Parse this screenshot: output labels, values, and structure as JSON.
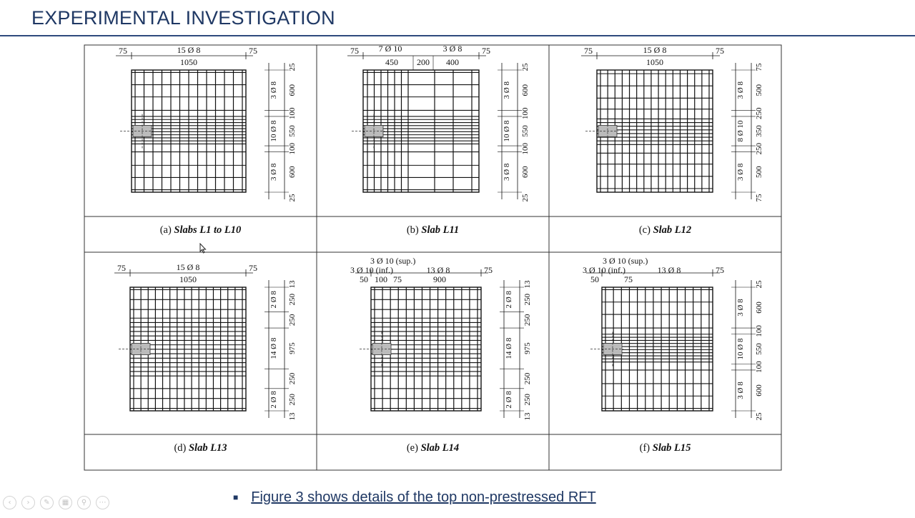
{
  "header": {
    "title": "EXPERIMENTAL INVESTIGATION"
  },
  "figure": {
    "panels": [
      {
        "caption_letter": "(a)",
        "caption_name": "Slabs L1 to L10",
        "top_labels": [
          "75",
          "15 Ø 8",
          "75"
        ],
        "top_dims": [
          "1050"
        ],
        "right_dims": [
          "25",
          "600",
          "100",
          "550",
          "100",
          "600",
          "25"
        ],
        "bar_labels": [
          "3 Ø 8",
          "10 Ø 8",
          "3 Ø 8"
        ]
      },
      {
        "caption_letter": "(b)",
        "caption_name": "Slab L11",
        "top_labels": [
          "75",
          "7 Ø 10",
          "3 Ø 8",
          "75"
        ],
        "top_dims": [
          "450",
          "200",
          "400"
        ],
        "right_dims": [
          "25",
          "600",
          "100",
          "550",
          "100",
          "600",
          "25"
        ],
        "bar_labels": [
          "3 Ø 8",
          "10 Ø 8",
          "3 Ø 8"
        ]
      },
      {
        "caption_letter": "(c)",
        "caption_name": "Slab L12",
        "top_labels": [
          "75",
          "15 Ø 8",
          "75"
        ],
        "top_dims": [
          "1050"
        ],
        "right_dims": [
          "75",
          "500",
          "250",
          "350",
          "250",
          "500",
          "75"
        ],
        "bar_labels": [
          "3 Ø 8",
          "8 Ø 10",
          "3 Ø 8"
        ]
      },
      {
        "caption_letter": "(d)",
        "caption_name": "Slab L13",
        "top_labels": [
          "75",
          "15 Ø 8",
          "75"
        ],
        "top_dims": [
          "1050"
        ],
        "right_dims": [
          "13",
          "250",
          "250",
          "975",
          "250",
          "250",
          "13"
        ],
        "bar_labels": [
          "2 Ø 8",
          "14 Ø 8",
          "2 Ø 8"
        ]
      },
      {
        "caption_letter": "(e)",
        "caption_name": "Slab L14",
        "top_labels": [
          "3 Ø 10 (sup.)",
          "3 Ø 10 (inf.)",
          "13 Ø 8",
          "75"
        ],
        "top_dims": [
          "50",
          "100",
          "75",
          "900"
        ],
        "right_dims": [
          "13",
          "250",
          "250",
          "975",
          "250",
          "250",
          "13"
        ],
        "bar_labels": [
          "2 Ø 8",
          "14 Ø 8",
          "2 Ø 8"
        ]
      },
      {
        "caption_letter": "(f)",
        "caption_name": "Slab L15",
        "top_labels": [
          "3 Ø 10 (sup.)",
          "3 Ø 10 (inf.)",
          "13 Ø 8",
          "75"
        ],
        "top_dims": [
          "50",
          "75"
        ],
        "right_dims": [
          "25",
          "600",
          "100",
          "550",
          "100",
          "600",
          "25"
        ],
        "bar_labels": [
          "3 Ø 8",
          "10 Ø 8",
          "3 Ø 8"
        ]
      }
    ]
  },
  "bullet": {
    "text": "Figure 3 shows details of the top non-prestressed RFT"
  },
  "toolbar": {
    "buttons": [
      {
        "name": "previous-slide-icon",
        "glyph": "‹"
      },
      {
        "name": "next-slide-icon",
        "glyph": "›"
      },
      {
        "name": "pen-icon",
        "glyph": "✎"
      },
      {
        "name": "slides-grid-icon",
        "glyph": "▦"
      },
      {
        "name": "zoom-icon",
        "glyph": "⚲"
      },
      {
        "name": "more-options-icon",
        "glyph": "⋯"
      }
    ]
  }
}
